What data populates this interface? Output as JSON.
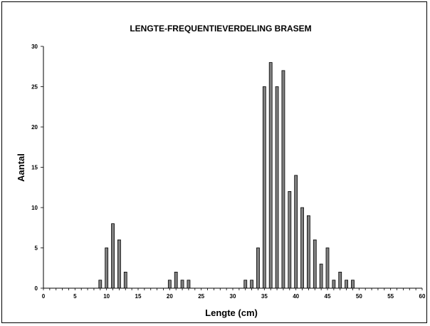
{
  "chart_data": {
    "type": "bar",
    "title": "LENGTE-FREQUENTIEVERDELING BRASEM",
    "xlabel": "Lengte (cm)",
    "ylabel": "Aantal",
    "xlim": [
      0,
      60
    ],
    "ylim": [
      0,
      30
    ],
    "x_ticks": [
      0,
      5,
      10,
      15,
      20,
      25,
      30,
      35,
      40,
      45,
      50,
      55,
      60
    ],
    "y_ticks": [
      0,
      5,
      10,
      15,
      20,
      25,
      30
    ],
    "grid": false,
    "legend": "none",
    "bar_color": "#808080",
    "points": [
      {
        "x": 9,
        "y": 1
      },
      {
        "x": 10,
        "y": 5
      },
      {
        "x": 11,
        "y": 8
      },
      {
        "x": 12,
        "y": 6
      },
      {
        "x": 13,
        "y": 2
      },
      {
        "x": 20,
        "y": 1
      },
      {
        "x": 21,
        "y": 2
      },
      {
        "x": 22,
        "y": 1
      },
      {
        "x": 23,
        "y": 1
      },
      {
        "x": 32,
        "y": 1
      },
      {
        "x": 33,
        "y": 1
      },
      {
        "x": 34,
        "y": 5
      },
      {
        "x": 35,
        "y": 25
      },
      {
        "x": 36,
        "y": 28
      },
      {
        "x": 37,
        "y": 25
      },
      {
        "x": 38,
        "y": 27
      },
      {
        "x": 39,
        "y": 12
      },
      {
        "x": 40,
        "y": 14
      },
      {
        "x": 41,
        "y": 10
      },
      {
        "x": 42,
        "y": 9
      },
      {
        "x": 43,
        "y": 6
      },
      {
        "x": 44,
        "y": 3
      },
      {
        "x": 45,
        "y": 5
      },
      {
        "x": 46,
        "y": 1
      },
      {
        "x": 47,
        "y": 2
      },
      {
        "x": 48,
        "y": 1
      },
      {
        "x": 49,
        "y": 1
      }
    ]
  }
}
